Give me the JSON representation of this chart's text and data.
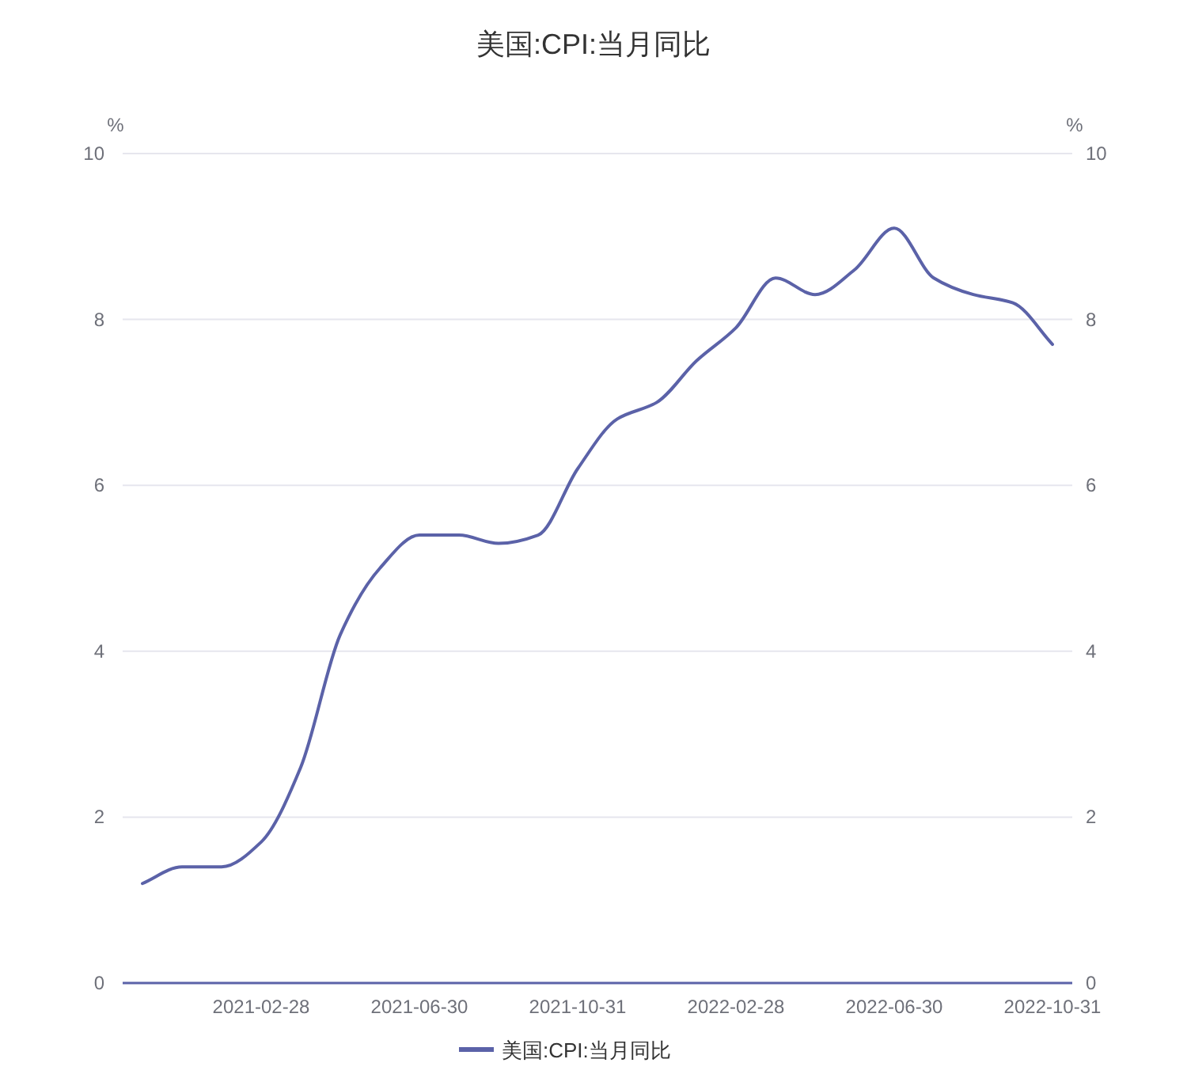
{
  "chart_data": {
    "type": "line",
    "title": "美国:CPI:当月同比",
    "ylabel": "%",
    "y2label": "%",
    "categories": [
      null,
      null,
      null,
      "2021-02-28",
      null,
      null,
      null,
      "2021-06-30",
      null,
      null,
      null,
      "2021-10-31",
      null,
      null,
      null,
      "2022-02-28",
      null,
      null,
      null,
      "2022-06-30",
      null,
      null,
      null,
      "2022-10-31"
    ],
    "series": [
      {
        "name": "美国:CPI:当月同比",
        "color": "#5b62a8",
        "values": [
          1.2,
          1.4,
          1.4,
          1.7,
          2.6,
          4.2,
          5.0,
          5.4,
          5.4,
          5.3,
          5.4,
          6.2,
          6.8,
          7.0,
          7.5,
          7.9,
          8.5,
          8.3,
          8.6,
          9.1,
          8.5,
          8.3,
          8.2,
          7.7
        ]
      }
    ],
    "ylim": [
      0,
      10
    ],
    "yticks": [
      0,
      2,
      4,
      6,
      8,
      10
    ],
    "y2lim": [
      0,
      10
    ],
    "y2ticks": [
      0,
      2,
      4,
      6,
      8,
      10
    ],
    "grid": "y",
    "legend": "bottom",
    "marker": "none",
    "line_style": "solid"
  }
}
